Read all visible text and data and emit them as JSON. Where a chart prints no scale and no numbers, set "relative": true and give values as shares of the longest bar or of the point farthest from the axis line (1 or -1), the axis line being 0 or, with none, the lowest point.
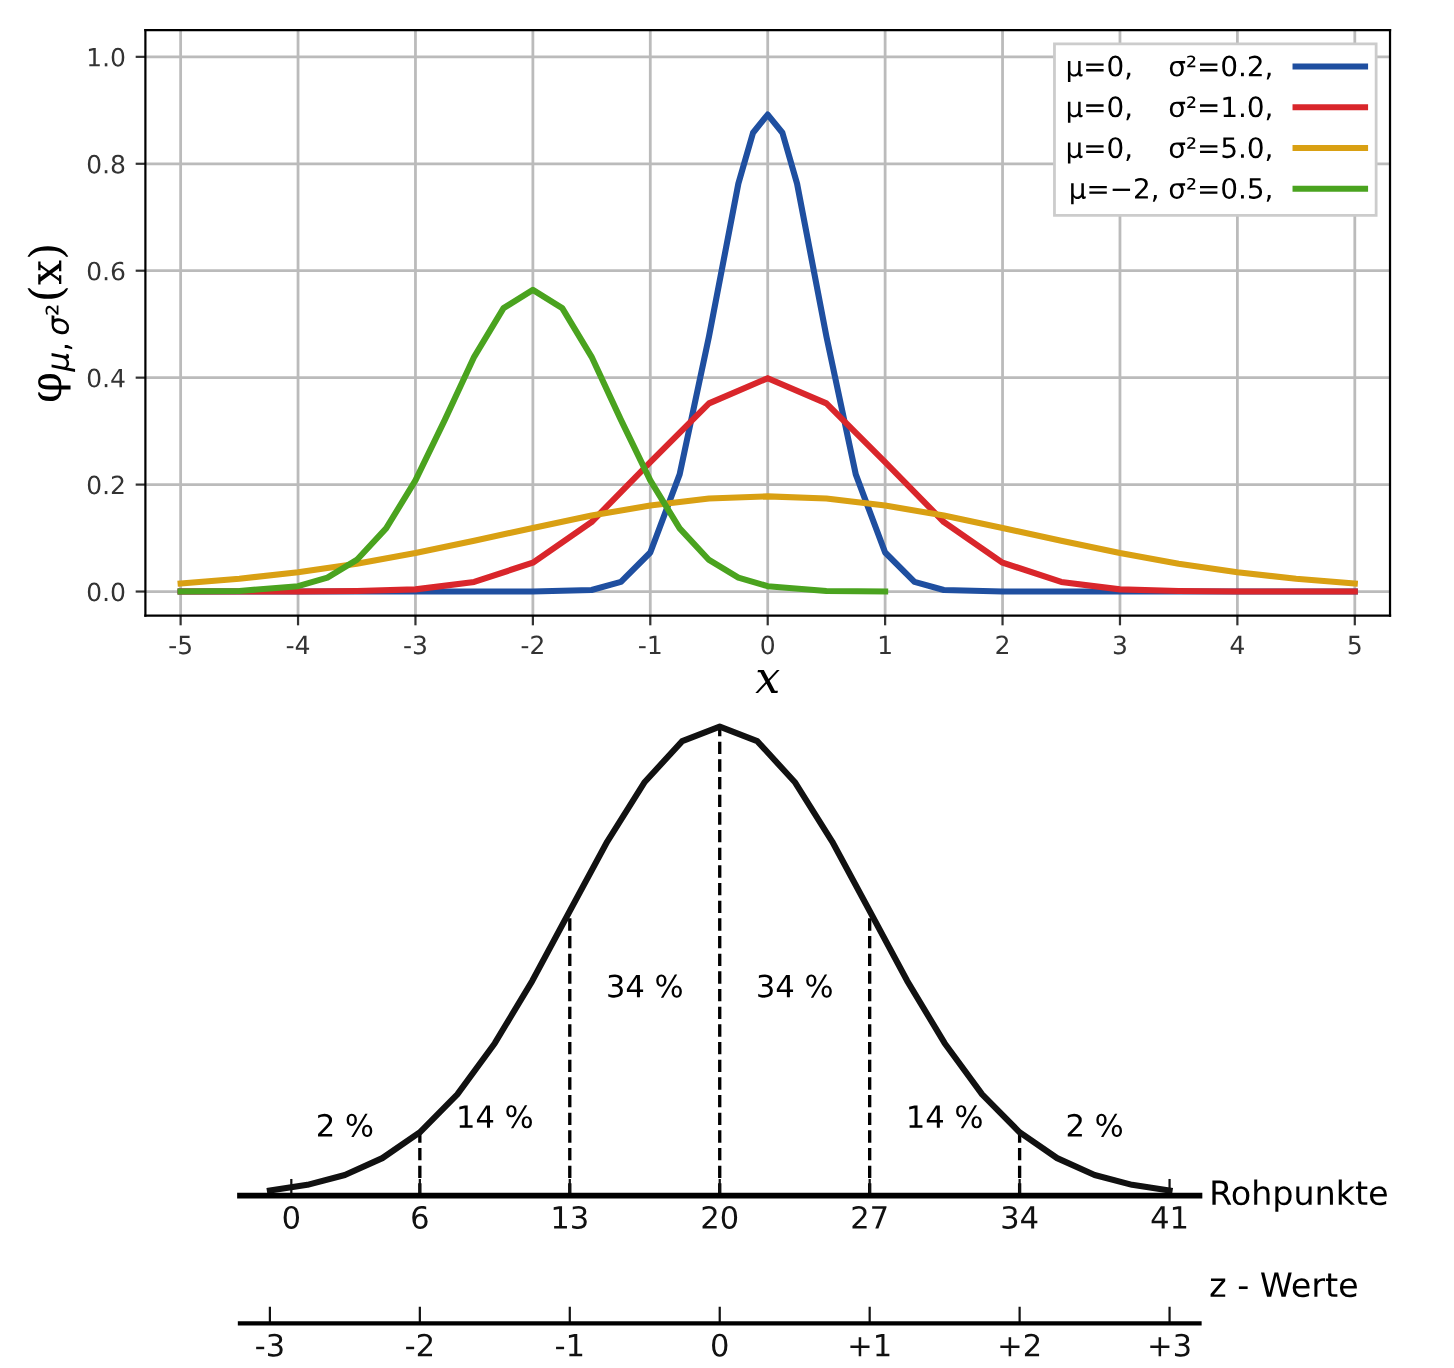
{
  "chart_data": [
    {
      "type": "line",
      "xlabel": "x",
      "ylabel": "φ$_{μ,σ²}$(x)",
      "xlim": [
        -5.3,
        5.3
      ],
      "ylim": [
        -0.045,
        1.05
      ],
      "xticks": [
        -5,
        -4,
        -3,
        -2,
        -1,
        0,
        1,
        2,
        3,
        4,
        5
      ],
      "yticks": [
        {
          "value": 0,
          "label": "0.0"
        },
        {
          "value": 0.2,
          "label": "0.2"
        },
        {
          "value": 0.4,
          "label": "0.4"
        },
        {
          "value": 0.6,
          "label": "0.6"
        },
        {
          "value": 0.8,
          "label": "0.8"
        },
        {
          "value": 1.0,
          "label": "1.0"
        }
      ],
      "grid": true,
      "legend": "top right",
      "marker": "none",
      "line_style": "solid",
      "series": [
        {
          "name": "μ=0,    σ²=0.2,",
          "color": "#1f4fa0",
          "x": [
            -5,
            -2,
            -1.5,
            -1.25,
            -1,
            -0.75,
            -0.5,
            -0.25,
            -0.125,
            0,
            0.125,
            0.25,
            0.5,
            0.75,
            1,
            1.25,
            1.5,
            2,
            5
          ],
          "values": [
            0,
            0,
            0.003,
            0.018,
            0.073,
            0.219,
            0.477,
            0.763,
            0.858,
            0.892,
            0.858,
            0.763,
            0.477,
            0.219,
            0.073,
            0.018,
            0.003,
            0,
            0
          ]
        },
        {
          "name": "μ=0,    σ²=1.0,",
          "color": "#d9262b",
          "x": [
            -5,
            -4.5,
            -4,
            -3.5,
            -3,
            -2.5,
            -2,
            -1.5,
            -1,
            -0.5,
            0,
            0.5,
            1,
            1.5,
            2,
            2.5,
            3,
            3.5,
            4,
            4.5,
            5
          ],
          "values": [
            0,
            0,
            0,
            0.001,
            0.004,
            0.018,
            0.054,
            0.13,
            0.242,
            0.352,
            0.399,
            0.352,
            0.242,
            0.13,
            0.054,
            0.018,
            0.004,
            0.001,
            0,
            0,
            0
          ]
        },
        {
          "name": "μ=0,    σ²=5.0,",
          "color": "#d9a013",
          "x": [
            -5,
            -4.5,
            -4,
            -3.5,
            -3,
            -2.5,
            -2,
            -1.5,
            -1,
            -0.5,
            0,
            0.5,
            1,
            1.5,
            2,
            2.5,
            3,
            3.5,
            4,
            4.5,
            5
          ],
          "values": [
            0.015,
            0.024,
            0.036,
            0.052,
            0.072,
            0.095,
            0.119,
            0.142,
            0.161,
            0.174,
            0.178,
            0.174,
            0.161,
            0.142,
            0.119,
            0.095,
            0.072,
            0.052,
            0.036,
            0.024,
            0.015
          ]
        },
        {
          "name": "μ=−2, σ²=0.5,",
          "color": "#4aa31f",
          "x": [
            -5,
            -4.5,
            -4,
            -3.75,
            -3.5,
            -3.25,
            -3,
            -2.75,
            -2.5,
            -2.25,
            -2,
            -1.75,
            -1.5,
            -1.25,
            -1,
            -0.75,
            -0.5,
            -0.25,
            0,
            0.5,
            1
          ],
          "values": [
            0,
            0.001,
            0.01,
            0.026,
            0.059,
            0.118,
            0.208,
            0.321,
            0.439,
            0.53,
            0.564,
            0.53,
            0.439,
            0.321,
            0.208,
            0.118,
            0.059,
            0.026,
            0.01,
            0.001,
            0
          ]
        }
      ]
    },
    {
      "type": "line",
      "relative": true,
      "xlabel": "z - Werte",
      "x2label": "Rohpunkte",
      "xlim": [
        -3.2,
        3.2
      ],
      "xticks": [
        -3,
        -2,
        -1,
        0,
        {
          "value": 1,
          "label": "+1"
        },
        {
          "value": 2,
          "label": "+2"
        },
        {
          "value": 3,
          "label": "+3"
        }
      ],
      "x2lim": [
        -2.4,
        42.4
      ],
      "x2ticks": [
        0,
        6,
        13,
        20,
        27,
        34,
        41
      ],
      "marker": "none",
      "line_style": "solid",
      "ref_lines": [
        {
          "axis": "x",
          "value": -2,
          "color": "#000000",
          "line_style": "dashed"
        },
        {
          "axis": "x",
          "value": -1,
          "color": "#000000",
          "line_style": "dashed"
        },
        {
          "axis": "x",
          "value": 0,
          "color": "#000000",
          "line_style": "dashed"
        },
        {
          "axis": "x",
          "value": 1,
          "color": "#000000",
          "line_style": "dashed"
        },
        {
          "axis": "x",
          "value": 2,
          "color": "#000000",
          "line_style": "dashed"
        }
      ],
      "annotations": [
        "2 %",
        "14 %",
        "34 %",
        "34 %",
        "14 %",
        "2 %"
      ],
      "series": [
        {
          "color": "#111111",
          "x": [
            -3,
            -2.75,
            -2.5,
            -2.25,
            -2,
            -1.75,
            -1.5,
            -1.25,
            -1,
            -0.75,
            -0.5,
            -0.25,
            0,
            0.25,
            0.5,
            0.75,
            1,
            1.25,
            1.5,
            1.75,
            2,
            2.25,
            2.5,
            2.75,
            3
          ],
          "values": [
            0.011,
            0.023,
            0.044,
            0.08,
            0.135,
            0.216,
            0.325,
            0.458,
            0.607,
            0.755,
            0.882,
            0.969,
            1,
            0.969,
            0.882,
            0.755,
            0.607,
            0.458,
            0.325,
            0.216,
            0.135,
            0.08,
            0.044,
            0.023,
            0.011
          ]
        }
      ]
    }
  ]
}
